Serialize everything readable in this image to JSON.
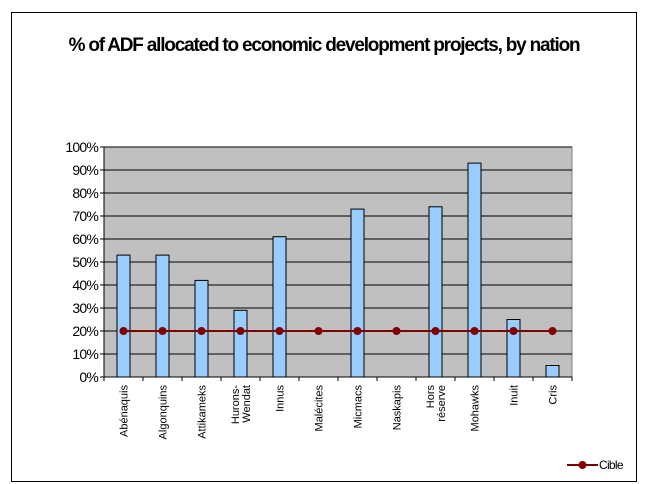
{
  "chart_data": {
    "type": "bar",
    "title": "% of ADF allocated to economic development projects, by nation",
    "categories": [
      [
        "Abénaquis"
      ],
      [
        "Algonquins"
      ],
      [
        "Attikameks"
      ],
      [
        "Hurons-",
        "Wendat"
      ],
      [
        "Innus"
      ],
      [
        "Malécites"
      ],
      [
        "Micmacs"
      ],
      [
        "Naskapis"
      ],
      [
        "Hors",
        "réserve"
      ],
      [
        "Mohawks"
      ],
      [
        "Inuit"
      ],
      [
        "Cris"
      ]
    ],
    "series": [
      {
        "type": "bar",
        "values": [
          53,
          53,
          42,
          29,
          61,
          0,
          73,
          0,
          74,
          93,
          25,
          5
        ],
        "color": "#99ccff"
      },
      {
        "name": "Cible",
        "type": "line",
        "values": [
          20,
          20,
          20,
          20,
          20,
          20,
          20,
          20,
          20,
          20,
          20,
          20
        ],
        "color": "#800000"
      }
    ],
    "ylim": [
      0,
      100
    ],
    "yticks": [
      "0%",
      "10%",
      "20%",
      "30%",
      "40%",
      "50%",
      "60%",
      "70%",
      "80%",
      "90%",
      "100%"
    ],
    "plot_background": "#c0c0c0",
    "grid": true,
    "legend_position": "bottom-right"
  }
}
